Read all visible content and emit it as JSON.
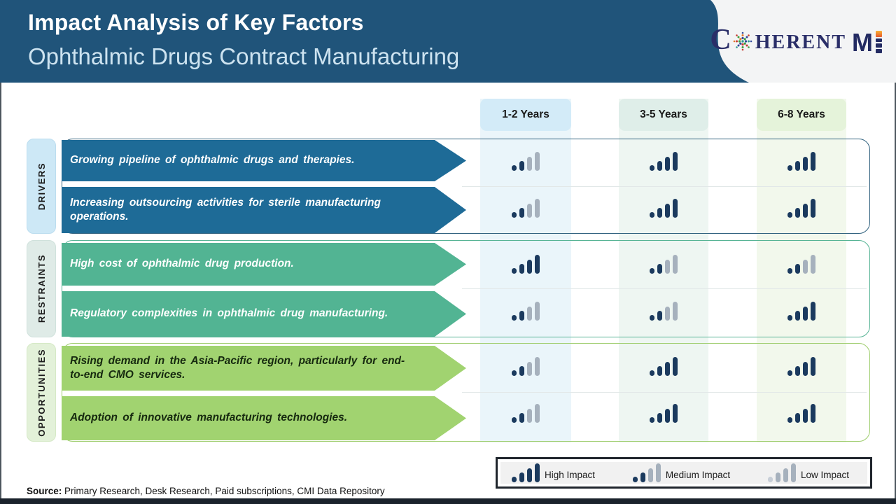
{
  "header": {
    "title": "Impact Analysis of Key Factors",
    "subtitle": "Ophthalmic Drugs Contract Manufacturing"
  },
  "logo": {
    "part_c": "C",
    "part_herent": "HERENT",
    "part_m": "M",
    "brand_full": "COHERENTMI"
  },
  "columns": [
    {
      "label": "1-2 Years",
      "color": "#D3EBF8"
    },
    {
      "label": "3-5 Years",
      "color": "#DFEEE9"
    },
    {
      "label": "6-8 Years",
      "color": "#E5F3DA"
    }
  ],
  "groups": [
    {
      "label": "DRIVERS",
      "arrow_color": "#1E6B97",
      "label_bg": "#CDE8F6",
      "rows": [
        {
          "text": "Growing pipeline of ophthalmic drugs and therapies.",
          "impacts": [
            "medium",
            "high",
            "high"
          ]
        },
        {
          "text": "Increasing outsourcing activities for sterile manufacturing operations.",
          "impacts": [
            "medium",
            "high",
            "high"
          ]
        }
      ]
    },
    {
      "label": "RESTRAINTS",
      "arrow_color": "#52B493",
      "label_bg": "#DFEBE7",
      "rows": [
        {
          "text": "High cost of ophthalmic drug production.",
          "impacts": [
            "high",
            "medium",
            "medium"
          ]
        },
        {
          "text": "Regulatory complexities in ophthalmic drug manufacturing.",
          "impacts": [
            "medium",
            "medium",
            "high"
          ]
        }
      ]
    },
    {
      "label": "OPPORTUNITIES",
      "arrow_color": "#A1D370",
      "label_bg": "#E3F1D9",
      "rows": [
        {
          "text": "Rising demand in the Asia-Pacific region, particularly for end-to-end CMO services.",
          "impacts": [
            "medium",
            "high",
            "high"
          ]
        },
        {
          "text": "Adoption of innovative manufacturing technologies.",
          "impacts": [
            "medium",
            "high",
            "high"
          ]
        }
      ]
    }
  ],
  "legend": {
    "items": [
      {
        "label": "High Impact",
        "level": "high"
      },
      {
        "label": "Medium Impact",
        "level": "medium"
      },
      {
        "label": "Low Impact",
        "level": "low"
      }
    ]
  },
  "source": {
    "prefix": "Source:",
    "text": " Primary Research, Desk Research, Paid subscriptions, CMI Data Repository"
  },
  "colors": {
    "header_bg": "#20547A",
    "impact_high": "#1B3A5E",
    "impact_inactive": "#A6B1BD"
  }
}
